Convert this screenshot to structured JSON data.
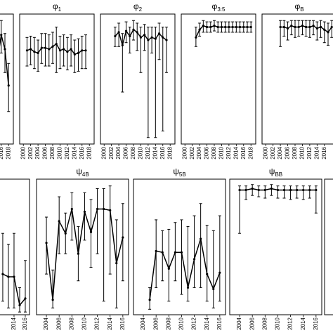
{
  "chart_data": [
    {
      "type": "line",
      "color": "#000000",
      "xlim": [
        1999,
        2019.3
      ],
      "ylim": [
        0,
        1
      ],
      "xticks": [
        2016,
        2018
      ],
      "x": [
        2015,
        2016,
        2017,
        2018
      ],
      "values": [
        0.65,
        0.84,
        0.73,
        0.45
      ],
      "lower": [
        0.5,
        0.7,
        0.55,
        0.25
      ],
      "upper": [
        0.8,
        0.95,
        0.85,
        0.62
      ]
    },
    {
      "type": "line",
      "color": "#000000",
      "title": {
        "symbol": "φ",
        "subscript": "1"
      },
      "xlim": [
        1999,
        2019.3
      ],
      "ylim": [
        0,
        1
      ],
      "xticks": [
        2000,
        2002,
        2004,
        2006,
        2008,
        2010,
        2012,
        2014,
        2016,
        2018
      ],
      "x": [
        2001,
        2002,
        2003,
        2004,
        2005,
        2006,
        2007,
        2008,
        2009,
        2010,
        2011,
        2012,
        2013,
        2014,
        2015,
        2016,
        2017
      ],
      "values": [
        0.72,
        0.73,
        0.71,
        0.7,
        0.74,
        0.74,
        0.73,
        0.75,
        0.77,
        0.72,
        0.73,
        0.71,
        0.73,
        0.69,
        0.7,
        0.72,
        0.72
      ],
      "lower": [
        0.6,
        0.61,
        0.58,
        0.56,
        0.62,
        0.6,
        0.6,
        0.62,
        0.55,
        0.58,
        0.6,
        0.57,
        0.6,
        0.55,
        0.56,
        0.58,
        0.58
      ],
      "upper": [
        0.82,
        0.83,
        0.82,
        0.8,
        0.85,
        0.85,
        0.84,
        0.86,
        0.9,
        0.83,
        0.84,
        0.82,
        0.84,
        0.8,
        0.81,
        0.83,
        0.84
      ]
    },
    {
      "type": "line",
      "color": "#000000",
      "title": {
        "symbol": "φ",
        "subscript": "2"
      },
      "xlim": [
        1999,
        2019.3
      ],
      "ylim": [
        0,
        1
      ],
      "xticks": [
        2000,
        2002,
        2004,
        2006,
        2008,
        2010,
        2012,
        2014,
        2016,
        2018
      ],
      "x": [
        2003,
        2004,
        2005,
        2006,
        2007,
        2008,
        2009,
        2010,
        2011,
        2012,
        2013,
        2014,
        2015,
        2016,
        2017
      ],
      "values": [
        0.83,
        0.86,
        0.76,
        0.87,
        0.83,
        0.88,
        0.86,
        0.82,
        0.84,
        0.8,
        0.82,
        0.81,
        0.85,
        0.82,
        0.8
      ],
      "lower": [
        0.75,
        0.75,
        0.4,
        0.78,
        0.7,
        0.8,
        0.72,
        0.55,
        0.72,
        0.05,
        0.7,
        0.05,
        0.65,
        0.1,
        0.55
      ],
      "upper": [
        0.9,
        0.93,
        0.85,
        0.94,
        0.9,
        0.95,
        0.93,
        0.9,
        0.92,
        0.9,
        0.9,
        0.9,
        0.93,
        0.9,
        0.9
      ]
    },
    {
      "type": "line",
      "color": "#000000",
      "title": {
        "symbol": "φ",
        "subscript": "3:5"
      },
      "xlim": [
        1999,
        2019.3
      ],
      "ylim": [
        0,
        1
      ],
      "xticks": [
        2000,
        2002,
        2004,
        2006,
        2008,
        2010,
        2012,
        2014,
        2016,
        2018
      ],
      "x": [
        2003,
        2004,
        2005,
        2006,
        2007,
        2008,
        2009,
        2010,
        2011,
        2012,
        2013,
        2014,
        2015,
        2016,
        2017,
        2018
      ],
      "values": [
        0.82,
        0.88,
        0.91,
        0.9,
        0.9,
        0.91,
        0.9,
        0.9,
        0.9,
        0.9,
        0.9,
        0.9,
        0.9,
        0.9,
        0.9,
        0.9
      ],
      "lower": [
        0.75,
        0.83,
        0.86,
        0.86,
        0.86,
        0.87,
        0.86,
        0.86,
        0.86,
        0.86,
        0.86,
        0.86,
        0.86,
        0.86,
        0.86,
        0.86
      ],
      "upper": [
        0.9,
        0.93,
        0.95,
        0.94,
        0.94,
        0.95,
        0.94,
        0.94,
        0.94,
        0.94,
        0.94,
        0.94,
        0.94,
        0.94,
        0.94,
        0.94
      ]
    },
    {
      "type": "line",
      "color": "#000000",
      "title": {
        "symbol": "φ",
        "subscript": "B"
      },
      "xlim": [
        1999,
        2019.3
      ],
      "ylim": [
        0,
        1
      ],
      "xticks": [
        2000,
        2002,
        2004,
        2006,
        2008,
        2010,
        2012,
        2014,
        2016
      ],
      "x": [
        2004,
        2005,
        2006,
        2007,
        2008,
        2009,
        2010,
        2011,
        2012,
        2013,
        2014,
        2015,
        2016,
        2017,
        2018
      ],
      "values": [
        0.9,
        0.9,
        0.89,
        0.91,
        0.9,
        0.9,
        0.91,
        0.9,
        0.9,
        0.91,
        0.89,
        0.9,
        0.88,
        0.86,
        0.9
      ],
      "lower": [
        0.75,
        0.83,
        0.8,
        0.84,
        0.82,
        0.83,
        0.84,
        0.83,
        0.82,
        0.84,
        0.8,
        0.82,
        0.78,
        0.76,
        0.82
      ],
      "upper": [
        0.95,
        0.95,
        0.94,
        0.95,
        0.95,
        0.95,
        0.95,
        0.95,
        0.95,
        0.95,
        0.94,
        0.95,
        0.94,
        0.93,
        0.95
      ]
    },
    {
      "type": "line",
      "color": "#000000",
      "xlim": [
        2000.4,
        2016.75
      ],
      "ylim": [
        0,
        1
      ],
      "xticks": [
        2014,
        2016
      ],
      "x": [
        2012,
        2013,
        2014,
        2015,
        2016
      ],
      "values": [
        0.3,
        0.28,
        0.28,
        0.07,
        0.12
      ],
      "lower": [
        0.1,
        0.05,
        0.05,
        0.02,
        0.02
      ],
      "upper": [
        0.6,
        0.52,
        0.6,
        0.2,
        0.4
      ]
    },
    {
      "type": "line",
      "color": "#000000",
      "title": {
        "symbol": "ψ",
        "subscript": "4B"
      },
      "xlim": [
        2002.45,
        2016.9
      ],
      "ylim": [
        0,
        1
      ],
      "xticks": [
        2004,
        2006,
        2008,
        2010,
        2012,
        2014,
        2016
      ],
      "x": [
        2004,
        2005,
        2006,
        2007,
        2008,
        2009,
        2010,
        2011,
        2012,
        2013,
        2014,
        2015,
        2016
      ],
      "values": [
        0.53,
        0.11,
        0.69,
        0.6,
        0.78,
        0.45,
        0.76,
        0.61,
        0.78,
        0.78,
        0.77,
        0.38,
        0.57
      ],
      "lower": [
        0.3,
        0.05,
        0.45,
        0.45,
        0.55,
        0.25,
        0.55,
        0.35,
        0.45,
        0.1,
        0.3,
        0.05,
        0.25
      ],
      "upper": [
        0.72,
        0.33,
        0.87,
        0.75,
        0.9,
        0.65,
        0.9,
        0.85,
        0.93,
        0.93,
        0.95,
        0.7,
        0.82
      ]
    },
    {
      "type": "line",
      "color": "#000000",
      "title": {
        "symbol": "ψ",
        "subscript": "5B"
      },
      "xlim": [
        2002.45,
        2016.9
      ],
      "ylim": [
        0,
        1
      ],
      "xticks": [
        2004,
        2006,
        2008,
        2010,
        2012,
        2014,
        2016
      ],
      "x": [
        2005,
        2006,
        2007,
        2008,
        2009,
        2010,
        2011,
        2012,
        2013,
        2014,
        2015,
        2016
      ],
      "values": [
        0.11,
        0.47,
        0.46,
        0.34,
        0.46,
        0.46,
        0.2,
        0.41,
        0.56,
        0.3,
        0.19,
        0.31
      ],
      "lower": [
        0.04,
        0.2,
        0.25,
        0.1,
        0.25,
        0.15,
        0.1,
        0.2,
        0.2,
        0.1,
        0.05,
        0.1
      ],
      "upper": [
        0.2,
        0.7,
        0.62,
        0.63,
        0.68,
        0.7,
        0.65,
        0.73,
        0.82,
        0.66,
        0.62,
        0.73
      ]
    },
    {
      "type": "line",
      "color": "#000000",
      "title": {
        "symbol": "ψ",
        "subscript": "BB"
      },
      "xlim": [
        2002.45,
        2016.9
      ],
      "ylim": [
        0,
        1
      ],
      "xticks": [
        2004,
        2006,
        2008,
        2010,
        2012,
        2014,
        2016
      ],
      "x": [
        2004,
        2005,
        2006,
        2007,
        2008,
        2009,
        2010,
        2011,
        2012,
        2013,
        2014,
        2015,
        2016
      ],
      "values": [
        0.92,
        0.92,
        0.93,
        0.92,
        0.92,
        0.93,
        0.92,
        0.92,
        0.92,
        0.92,
        0.92,
        0.92,
        0.92
      ],
      "lower": [
        0.6,
        0.85,
        0.88,
        0.87,
        0.86,
        0.88,
        0.86,
        0.86,
        0.85,
        0.86,
        0.85,
        0.86,
        0.75
      ],
      "upper": [
        0.95,
        0.95,
        0.96,
        0.95,
        0.95,
        0.96,
        0.95,
        0.95,
        0.95,
        0.95,
        0.95,
        0.95,
        0.95
      ]
    }
  ]
}
